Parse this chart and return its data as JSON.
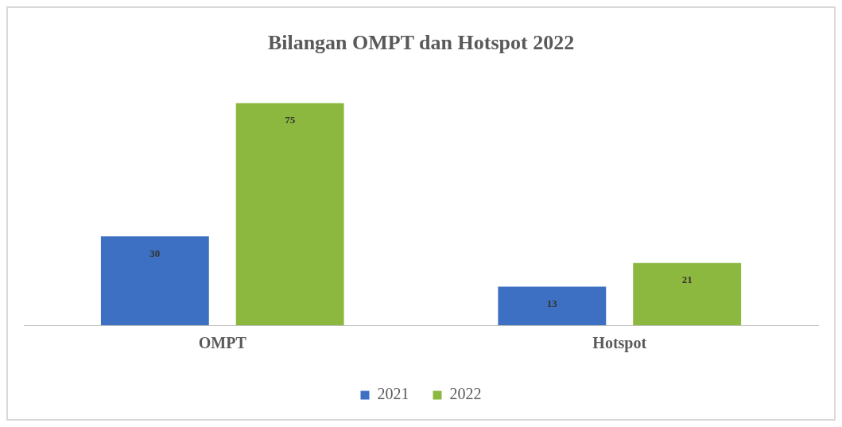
{
  "chart_data": {
    "type": "bar",
    "title": "Bilangan OMPT dan Hotspot 2022",
    "categories": [
      "OMPT",
      "Hotspot"
    ],
    "series": [
      {
        "name": "2021",
        "color": "#3d70c2",
        "values": [
          30,
          13
        ]
      },
      {
        "name": "2022",
        "color": "#8cb83f",
        "values": [
          75,
          21
        ]
      }
    ],
    "data_labels": true,
    "legend": "bottom",
    "grid": false
  }
}
